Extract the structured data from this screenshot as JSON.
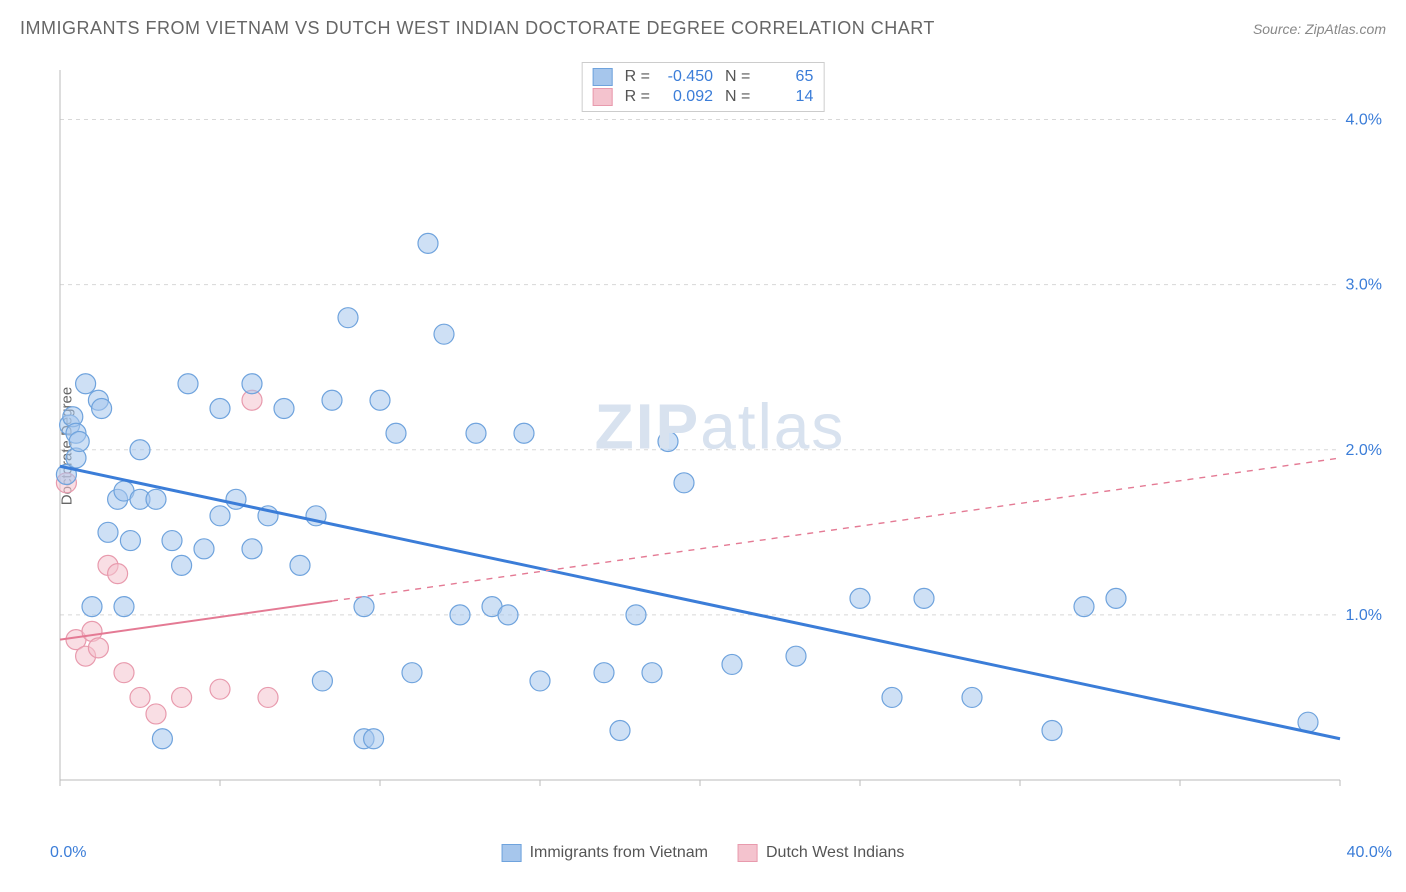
{
  "title": "IMMIGRANTS FROM VIETNAM VS DUTCH WEST INDIAN DOCTORATE DEGREE CORRELATION CHART",
  "source_label": "Source:",
  "source_value": "ZipAtlas.com",
  "y_axis_label": "Doctorate Degree",
  "watermark_bold": "ZIP",
  "watermark_light": "atlas",
  "chart": {
    "type": "scatter",
    "background_color": "#ffffff",
    "grid_color": "#d8d8d8",
    "axis_color": "#bbbbbb",
    "tick_label_color": "#3b7dd8",
    "xlim": [
      0,
      40
    ],
    "ylim": [
      0,
      4.3
    ],
    "x_ticks_minor": [
      0,
      5,
      10,
      15,
      20,
      25,
      30,
      35,
      40
    ],
    "y_grid": [
      1,
      2,
      3,
      4
    ],
    "y_tick_labels": [
      "1.0%",
      "2.0%",
      "3.0%",
      "4.0%"
    ],
    "x_tick_labels": {
      "left": "0.0%",
      "right": "40.0%"
    }
  },
  "series": [
    {
      "name": "Immigrants from Vietnam",
      "fill_color": "#a6c6ec",
      "stroke_color": "#6fa3dd",
      "fill_opacity": 0.55,
      "marker_radius": 10,
      "r_value": "-0.450",
      "n_value": "65",
      "trend": {
        "x1": 0,
        "y1": 1.9,
        "x2": 40,
        "y2": 0.25,
        "dashed": false,
        "solid_until_x": 40,
        "color": "#3b7dd8",
        "width": 3
      },
      "points": [
        [
          0.2,
          1.85
        ],
        [
          0.3,
          2.15
        ],
        [
          0.4,
          2.2
        ],
        [
          0.5,
          2.1
        ],
        [
          0.5,
          1.95
        ],
        [
          0.6,
          2.05
        ],
        [
          0.8,
          2.4
        ],
        [
          1.0,
          1.05
        ],
        [
          1.2,
          2.3
        ],
        [
          1.3,
          2.25
        ],
        [
          1.5,
          1.5
        ],
        [
          1.8,
          1.7
        ],
        [
          2.0,
          1.05
        ],
        [
          2.0,
          1.75
        ],
        [
          2.2,
          1.45
        ],
        [
          2.5,
          1.7
        ],
        [
          2.5,
          2.0
        ],
        [
          3.0,
          1.7
        ],
        [
          3.2,
          0.25
        ],
        [
          3.5,
          1.45
        ],
        [
          3.8,
          1.3
        ],
        [
          4.0,
          2.4
        ],
        [
          4.5,
          1.4
        ],
        [
          5.0,
          1.6
        ],
        [
          5.0,
          2.25
        ],
        [
          5.5,
          1.7
        ],
        [
          6.0,
          2.4
        ],
        [
          6.0,
          1.4
        ],
        [
          6.5,
          1.6
        ],
        [
          7.0,
          2.25
        ],
        [
          7.5,
          1.3
        ],
        [
          8.0,
          1.6
        ],
        [
          8.2,
          0.6
        ],
        [
          8.5,
          2.3
        ],
        [
          9.0,
          2.8
        ],
        [
          9.5,
          0.25
        ],
        [
          9.5,
          1.05
        ],
        [
          9.8,
          0.25
        ],
        [
          10.0,
          2.3
        ],
        [
          10.5,
          2.1
        ],
        [
          11.0,
          0.65
        ],
        [
          11.5,
          3.25
        ],
        [
          12.0,
          2.7
        ],
        [
          12.5,
          1.0
        ],
        [
          13.0,
          2.1
        ],
        [
          13.5,
          1.05
        ],
        [
          14.0,
          1.0
        ],
        [
          14.5,
          2.1
        ],
        [
          15.0,
          0.6
        ],
        [
          17.0,
          0.65
        ],
        [
          17.5,
          0.3
        ],
        [
          18.0,
          1.0
        ],
        [
          18.5,
          0.65
        ],
        [
          19.0,
          2.05
        ],
        [
          19.5,
          1.8
        ],
        [
          21.0,
          0.7
        ],
        [
          23.0,
          0.75
        ],
        [
          25.0,
          1.1
        ],
        [
          26.0,
          0.5
        ],
        [
          27.0,
          1.1
        ],
        [
          28.5,
          0.5
        ],
        [
          31.0,
          0.3
        ],
        [
          32.0,
          1.05
        ],
        [
          33.0,
          1.1
        ],
        [
          39.0,
          0.35
        ]
      ]
    },
    {
      "name": "Dutch West Indians",
      "fill_color": "#f4c3ce",
      "stroke_color": "#e89aad",
      "fill_opacity": 0.55,
      "marker_radius": 10,
      "r_value": "0.092",
      "n_value": "14",
      "trend": {
        "x1": 0,
        "y1": 0.85,
        "x2": 40,
        "y2": 1.95,
        "dashed": true,
        "solid_until_x": 8.5,
        "color": "#e47a94",
        "width": 2
      },
      "points": [
        [
          0.2,
          1.8
        ],
        [
          0.5,
          0.85
        ],
        [
          0.8,
          0.75
        ],
        [
          1.0,
          0.9
        ],
        [
          1.2,
          0.8
        ],
        [
          1.5,
          1.3
        ],
        [
          1.8,
          1.25
        ],
        [
          2.0,
          0.65
        ],
        [
          2.5,
          0.5
        ],
        [
          3.0,
          0.4
        ],
        [
          3.8,
          0.5
        ],
        [
          5.0,
          0.55
        ],
        [
          6.0,
          2.3
        ],
        [
          6.5,
          0.5
        ]
      ]
    }
  ],
  "legend_bottom": [
    {
      "label": "Immigrants from Vietnam",
      "series": 0
    },
    {
      "label": "Dutch West Indians",
      "series": 1
    }
  ]
}
